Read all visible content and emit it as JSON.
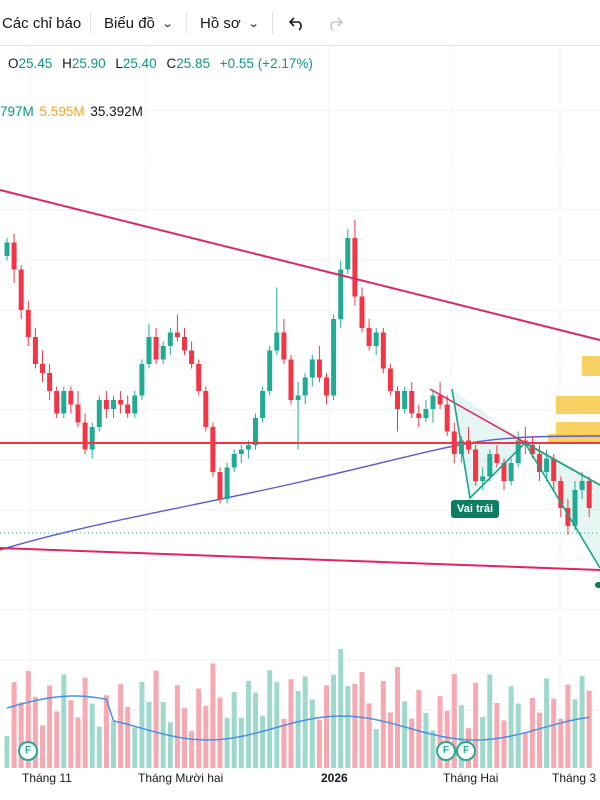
{
  "toolbar": {
    "indicators": "Các chỉ báo",
    "charts": "Biểu đồ",
    "profile": "Hồ sơ",
    "undo_icon": "undo-icon",
    "redo_icon": "redo-icon"
  },
  "legend": {
    "open_k": "O",
    "open_v": "25.45",
    "high_k": "H",
    "high_v": "25.90",
    "low_k": "L",
    "low_v": "25.40",
    "close_k": "C",
    "close_v": "25.85",
    "change": "+0.55 (+2.17%)"
  },
  "volume_legend": {
    "v1": "797M",
    "v2": "5.595M",
    "v3": "35.392M"
  },
  "colors": {
    "up": "#22ab94",
    "down": "#f23645",
    "trendline": "#e0245e",
    "support": "#f23645",
    "ma": "#5b5bd6",
    "volume_ma": "#4a90e2",
    "zone": "#f7c948"
  },
  "pattern_label": "Vai trái",
  "x_axis": {
    "l1": "Tháng 11",
    "l2": "Tháng Mười hai",
    "l3": "2026",
    "l4": "Tháng Hai",
    "l5": "Tháng 3"
  },
  "event_marker": "F",
  "chart_data": {
    "type": "candlestick",
    "candles_ohlc": [
      [
        27.6,
        28.0,
        27.5,
        27.9
      ],
      [
        27.9,
        28.1,
        27.0,
        27.3
      ],
      [
        27.3,
        27.4,
        26.2,
        26.4
      ],
      [
        26.4,
        26.6,
        25.6,
        25.8
      ],
      [
        25.8,
        26.0,
        25.1,
        25.2
      ],
      [
        25.2,
        25.5,
        24.8,
        25.0
      ],
      [
        25.0,
        25.2,
        24.4,
        24.6
      ],
      [
        24.6,
        24.7,
        24.0,
        24.1
      ],
      [
        24.1,
        24.7,
        24.0,
        24.6
      ],
      [
        24.6,
        24.7,
        24.1,
        24.3
      ],
      [
        24.3,
        24.6,
        23.8,
        23.9
      ],
      [
        23.9,
        24.1,
        23.2,
        23.3
      ],
      [
        23.3,
        23.9,
        23.1,
        23.8
      ],
      [
        23.8,
        24.5,
        23.7,
        24.4
      ],
      [
        24.4,
        24.6,
        24.0,
        24.2
      ],
      [
        24.2,
        24.5,
        24.0,
        24.4
      ],
      [
        24.4,
        24.6,
        24.1,
        24.3
      ],
      [
        24.3,
        24.5,
        24.0,
        24.1
      ],
      [
        24.1,
        24.6,
        24.0,
        24.5
      ],
      [
        24.5,
        25.3,
        24.4,
        25.2
      ],
      [
        25.2,
        26.1,
        25.1,
        25.8
      ],
      [
        25.8,
        26.0,
        25.2,
        25.3
      ],
      [
        25.3,
        25.7,
        25.2,
        25.6
      ],
      [
        25.6,
        26.0,
        25.4,
        25.9
      ],
      [
        25.9,
        26.3,
        25.7,
        25.8
      ],
      [
        25.8,
        26.0,
        25.4,
        25.5
      ],
      [
        25.5,
        25.7,
        25.1,
        25.2
      ],
      [
        25.2,
        25.3,
        24.5,
        24.6
      ],
      [
        24.6,
        24.7,
        23.7,
        23.8
      ],
      [
        23.8,
        23.9,
        22.7,
        22.8
      ],
      [
        22.8,
        22.9,
        22.1,
        22.2
      ],
      [
        22.2,
        23.0,
        22.1,
        22.9
      ],
      [
        22.9,
        23.3,
        22.8,
        23.2
      ],
      [
        23.2,
        23.4,
        23.0,
        23.3
      ],
      [
        23.3,
        23.5,
        23.1,
        23.4
      ],
      [
        23.4,
        24.1,
        23.3,
        24.0
      ],
      [
        24.0,
        24.7,
        23.9,
        24.6
      ],
      [
        24.6,
        25.6,
        24.5,
        25.5
      ],
      [
        25.5,
        26.9,
        25.4,
        25.9
      ],
      [
        25.9,
        26.2,
        25.2,
        25.3
      ],
      [
        25.3,
        25.4,
        24.3,
        24.4
      ],
      [
        24.4,
        24.8,
        23.3,
        24.5
      ],
      [
        24.5,
        25.0,
        24.3,
        24.9
      ],
      [
        24.9,
        25.4,
        24.7,
        25.3
      ],
      [
        25.3,
        25.6,
        24.8,
        24.9
      ],
      [
        24.9,
        25.0,
        24.3,
        24.5
      ],
      [
        24.5,
        26.3,
        24.4,
        26.2
      ],
      [
        26.2,
        27.5,
        26.0,
        27.3
      ],
      [
        27.3,
        28.2,
        27.2,
        28.0
      ],
      [
        28.0,
        28.4,
        26.5,
        26.7
      ],
      [
        26.7,
        26.9,
        25.9,
        26.0
      ],
      [
        26.0,
        26.2,
        25.5,
        25.6
      ],
      [
        25.6,
        26.0,
        25.4,
        25.9
      ],
      [
        25.9,
        26.0,
        25.0,
        25.1
      ],
      [
        25.1,
        25.2,
        24.5,
        24.6
      ],
      [
        24.6,
        24.7,
        23.7,
        24.2
      ],
      [
        24.2,
        24.7,
        24.1,
        24.6
      ],
      [
        24.6,
        24.8,
        24.0,
        24.1
      ],
      [
        24.1,
        24.3,
        23.8,
        24.0
      ],
      [
        24.0,
        24.4,
        23.9,
        24.2
      ],
      [
        24.2,
        24.6,
        23.9,
        24.5
      ],
      [
        24.5,
        24.8,
        24.2,
        24.3
      ],
      [
        24.3,
        24.5,
        23.6,
        23.7
      ],
      [
        23.7,
        23.9,
        23.0,
        23.2
      ],
      [
        23.2,
        23.6,
        23.0,
        23.5
      ],
      [
        23.5,
        23.8,
        23.2,
        23.3
      ],
      [
        23.3,
        23.4,
        22.5,
        22.6
      ],
      [
        22.6,
        22.9,
        22.4,
        22.7
      ],
      [
        22.7,
        23.3,
        22.6,
        23.2
      ],
      [
        23.2,
        23.4,
        22.9,
        23.0
      ],
      [
        23.0,
        23.1,
        22.4,
        22.6
      ],
      [
        22.6,
        23.1,
        22.5,
        23.0
      ],
      [
        23.0,
        23.7,
        22.9,
        23.5
      ],
      [
        23.5,
        23.8,
        23.2,
        23.4
      ],
      [
        23.4,
        23.6,
        23.1,
        23.2
      ],
      [
        23.2,
        23.4,
        22.6,
        22.8
      ],
      [
        22.8,
        23.3,
        22.6,
        23.1
      ],
      [
        23.1,
        23.2,
        22.4,
        22.6
      ],
      [
        22.6,
        22.7,
        21.8,
        22.0
      ],
      [
        22.0,
        22.2,
        21.4,
        21.6
      ],
      [
        21.6,
        22.6,
        21.5,
        22.4
      ],
      [
        22.4,
        22.8,
        22.2,
        22.6
      ],
      [
        22.6,
        22.7,
        21.8,
        22.0
      ]
    ]
  }
}
